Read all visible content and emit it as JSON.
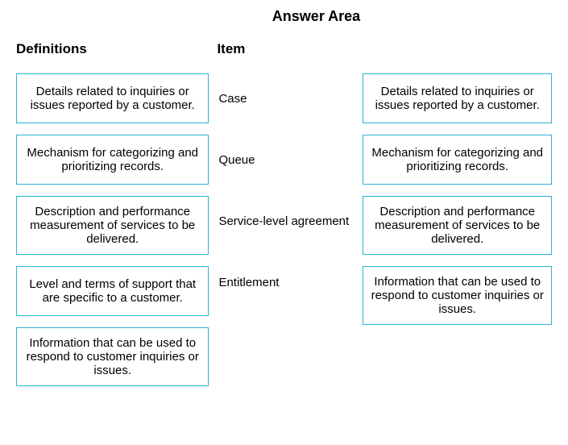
{
  "title": "Answer Area",
  "headers": {
    "definitions": "Definitions",
    "item": "Item"
  },
  "definitions": [
    "Details related to inquiries or issues reported by a customer.",
    "Mechanism for categorizing and prioritizing records.",
    "Description and performance measurement of services to be delivered.",
    "Level and terms of support that are specific to a customer.",
    "Information that can be used to respond to customer inquiries or issues."
  ],
  "items": [
    "Case",
    "Queue",
    "Service-level agreement",
    "Entitlement"
  ],
  "answers": [
    "Details related to inquiries or issues reported by a customer.",
    "Mechanism for categorizing and prioritizing records.",
    "Description and performance measurement of services to be delivered.",
    "Information that can be used to respond to customer inquiries or issues."
  ],
  "styling": {
    "box_border_color": "#2bb3d6",
    "background_color": "#ffffff",
    "text_color": "#000000",
    "title_fontsize": 18,
    "header_fontsize": 17,
    "body_fontsize": 15,
    "box_min_height": 62,
    "box_gap": 14,
    "col_def_width": 245,
    "col_item_width": 175,
    "col_ans_width": 240
  }
}
